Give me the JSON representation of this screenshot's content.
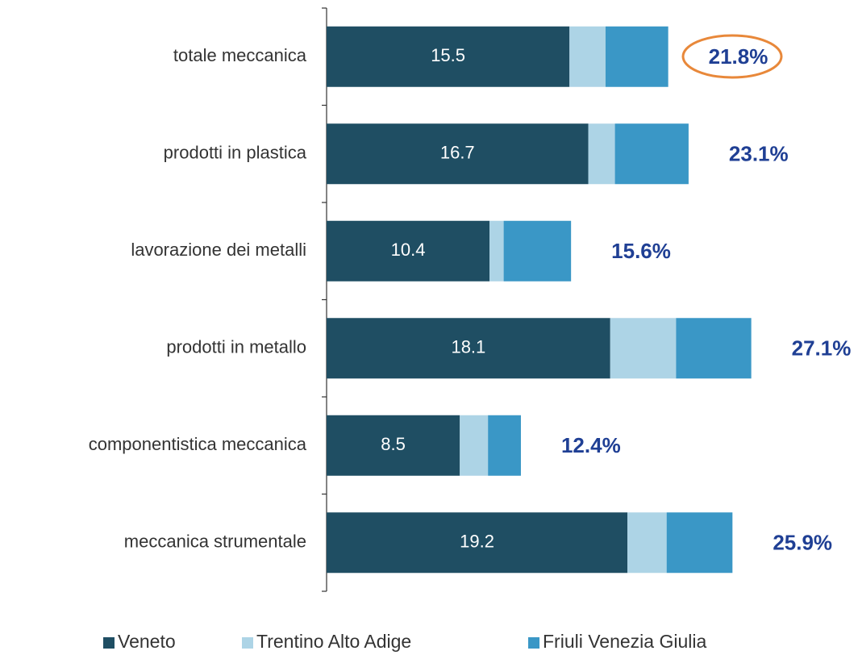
{
  "chart_data": {
    "type": "stacked-bar-horizontal",
    "categories": [
      "totale meccanica",
      "prodotti in plastica",
      "lavorazione dei metalli",
      "prodotti in metallo",
      "componentistica meccanica",
      "meccanica strumentale"
    ],
    "series": [
      {
        "name": "Veneto",
        "color": "#1f4e63",
        "values": [
          15.5,
          16.7,
          10.4,
          18.1,
          8.5,
          19.2
        ]
      },
      {
        "name": "Trentino Alto Adige",
        "color": "#add4e6",
        "values": [
          2.3,
          1.7,
          0.9,
          4.2,
          1.8,
          2.5
        ]
      },
      {
        "name": "Friuli Venezia Giulia",
        "color": "#3a97c6",
        "values": [
          4.0,
          4.7,
          4.3,
          4.8,
          2.1,
          4.2
        ]
      }
    ],
    "totals": {
      "values": [
        21.8,
        23.1,
        15.6,
        27.1,
        12.4,
        25.9
      ],
      "value_labels": [
        "21.8%",
        "23.1%",
        "15.6%",
        "27.1%",
        "12.4%",
        "25.9%"
      ]
    },
    "xlim": [
      0,
      30
    ],
    "legend": "bottom"
  }
}
